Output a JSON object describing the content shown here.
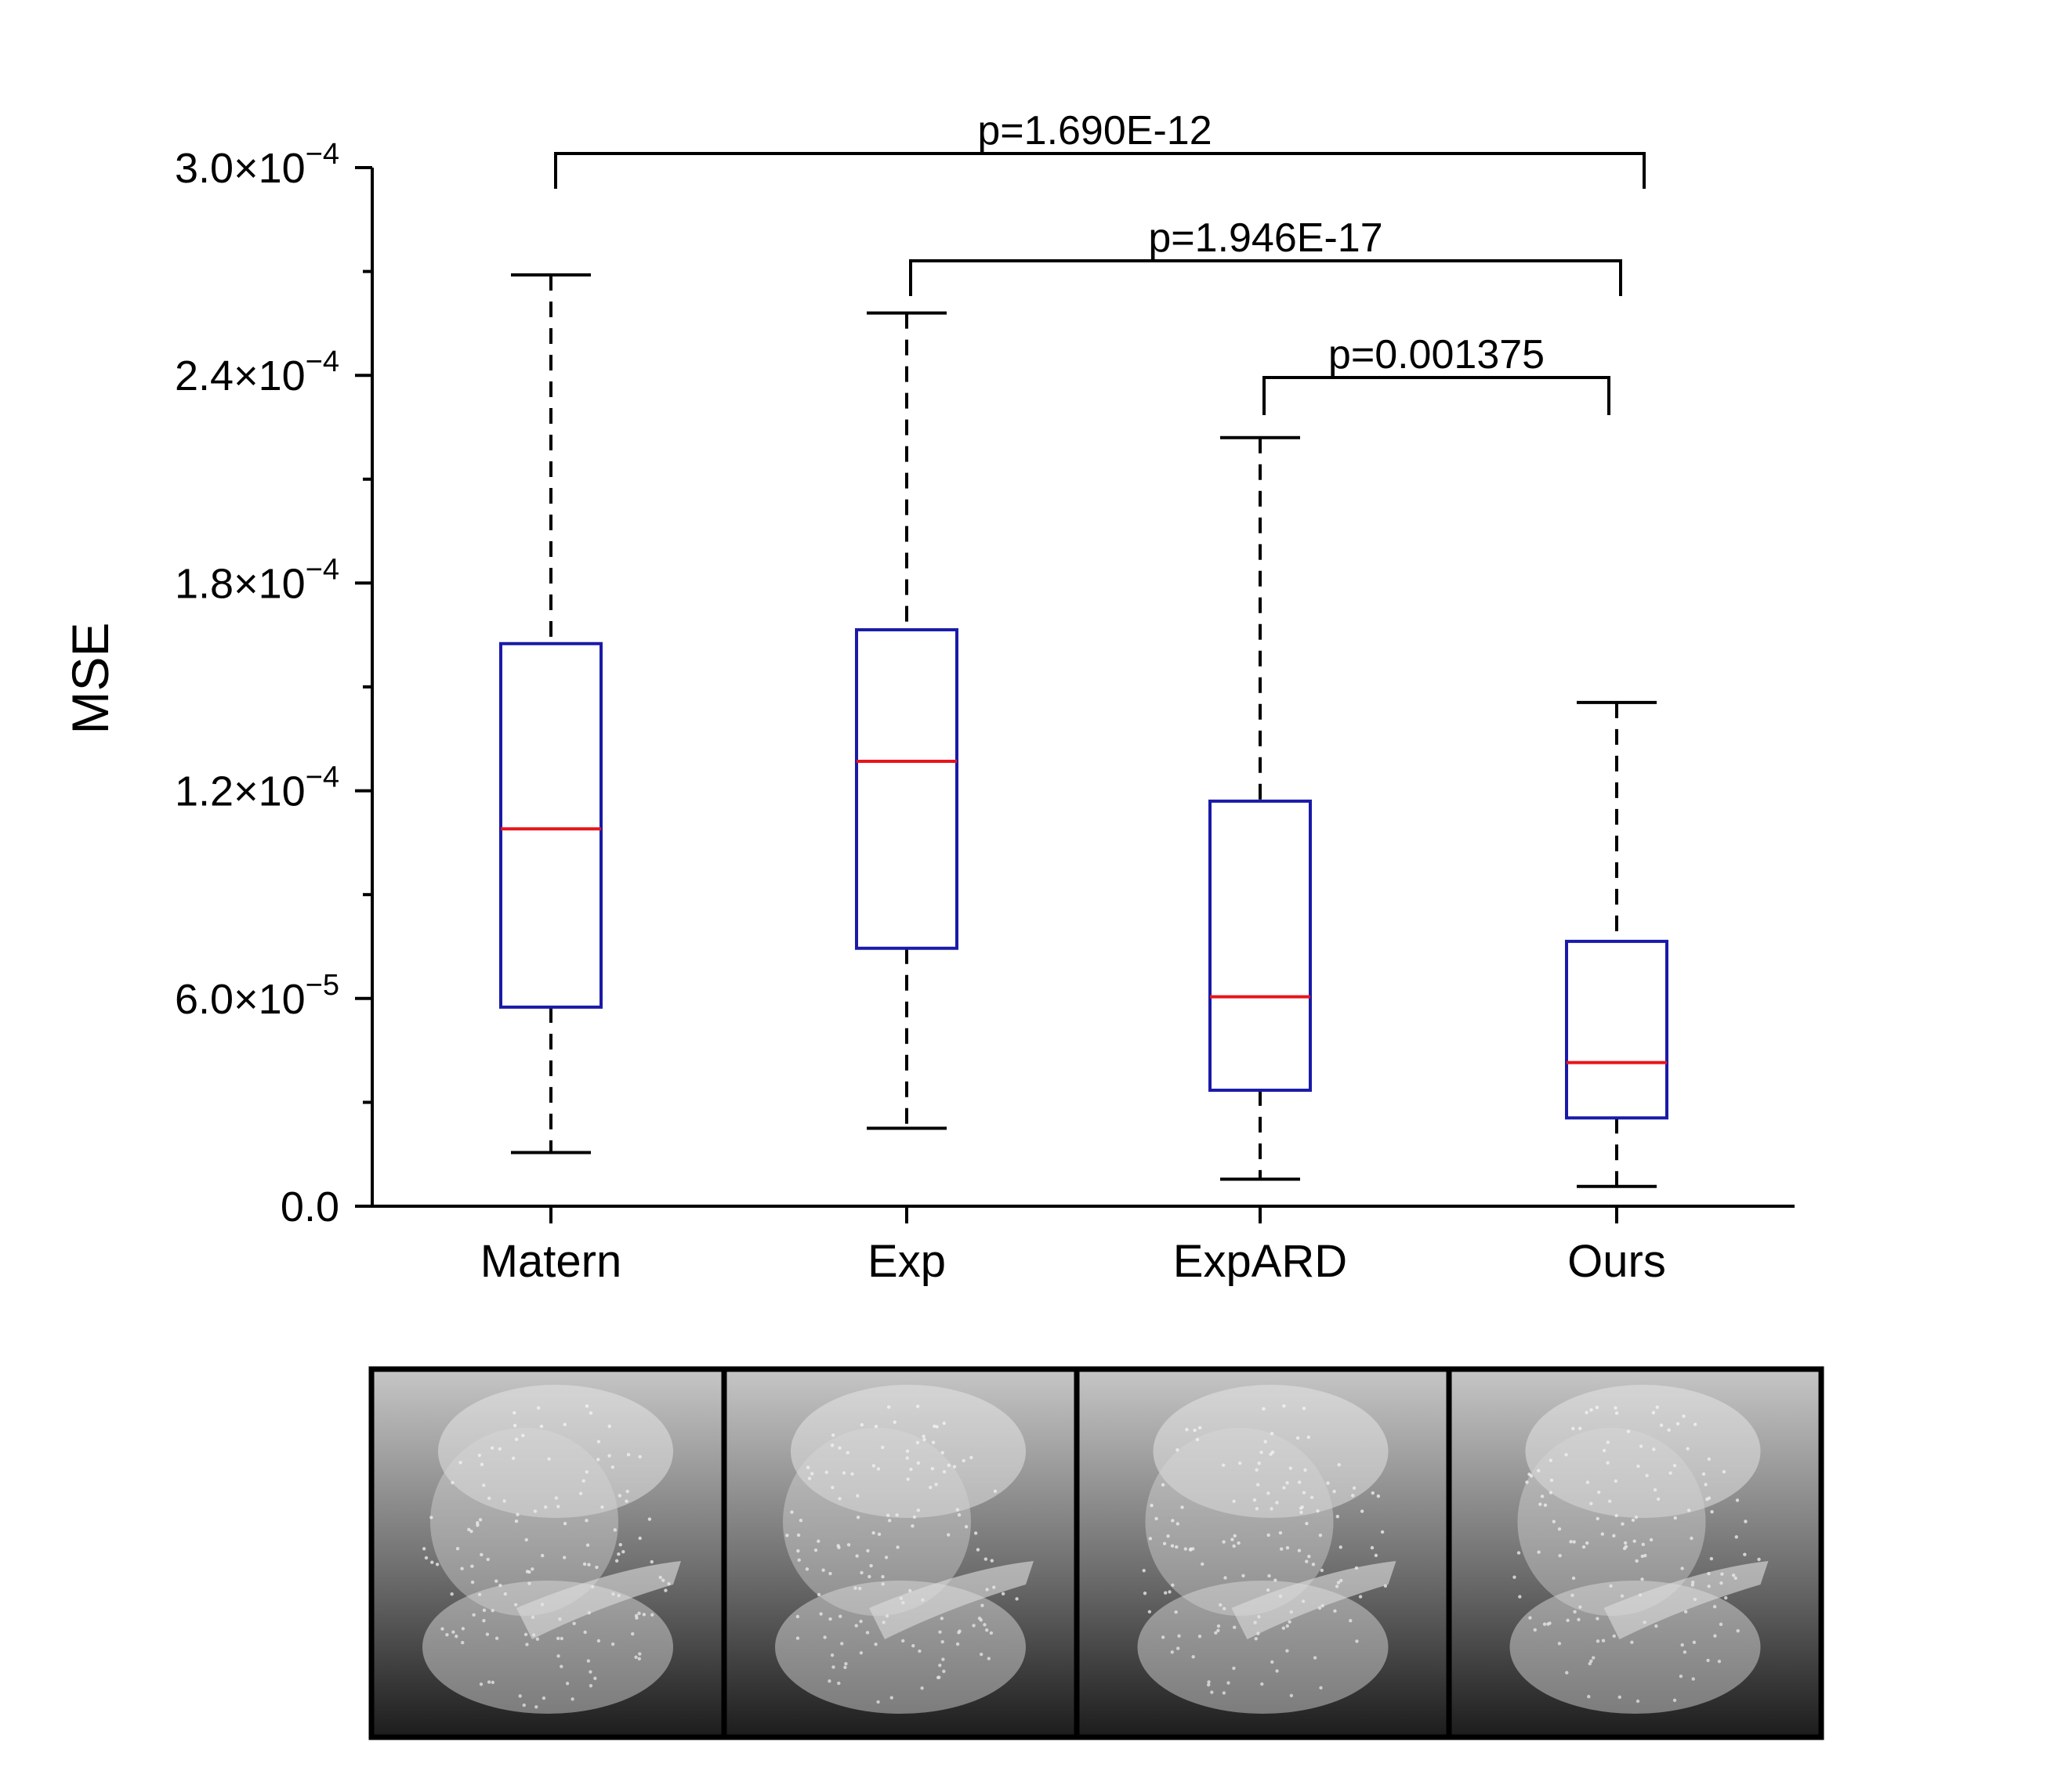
{
  "chart_data": {
    "type": "boxplot",
    "ylabel": "MSE",
    "ylim": [
      0,
      0.0003
    ],
    "y_ticks": [
      {
        "value": 0.0,
        "mantissa": "0.0",
        "exponent": ""
      },
      {
        "value": 6e-05,
        "mantissa": "6.0×10",
        "exponent": "−5"
      },
      {
        "value": 0.00012,
        "mantissa": "1.2×10",
        "exponent": "−4"
      },
      {
        "value": 0.00018,
        "mantissa": "1.8×10",
        "exponent": "−4"
      },
      {
        "value": 0.00024,
        "mantissa": "2.4×10",
        "exponent": "−4"
      },
      {
        "value": 0.0003,
        "mantissa": "3.0×10",
        "exponent": "−4"
      }
    ],
    "categories": [
      "Matern",
      "Exp",
      "ExpARD",
      "Ours"
    ],
    "boxes": [
      {
        "category": "Matern",
        "whisker_low": 1.55e-05,
        "q1": 5.75e-05,
        "median": 0.000109,
        "q3": 0.0001625,
        "whisker_high": 0.000269
      },
      {
        "category": "Exp",
        "whisker_low": 2.25e-05,
        "q1": 7.45e-05,
        "median": 0.0001285,
        "q3": 0.0001665,
        "whisker_high": 0.000258
      },
      {
        "category": "ExpARD",
        "whisker_low": 7.8e-06,
        "q1": 3.35e-05,
        "median": 6.05e-05,
        "q3": 0.000117,
        "whisker_high": 0.000222
      },
      {
        "category": "Ours",
        "whisker_low": 5.7e-06,
        "q1": 2.55e-05,
        "median": 4.15e-05,
        "q3": 7.65e-05,
        "whisker_high": 0.0001455
      }
    ],
    "significance": [
      {
        "from": "Matern",
        "to": "Ours",
        "label": "p=1.690E-12"
      },
      {
        "from": "Exp",
        "to": "Ours",
        "label": "p=1.946E-17"
      },
      {
        "from": "ExpARD",
        "to": "Ours",
        "label": "p=0.001375"
      }
    ],
    "colors": {
      "box": "#1a1aa8",
      "median": "#e8141c",
      "whisker": "#000000"
    },
    "grid": false
  },
  "panels": [
    {
      "name": "Matern"
    },
    {
      "name": "Exp"
    },
    {
      "name": "ExpARD"
    },
    {
      "name": "Ours"
    }
  ]
}
